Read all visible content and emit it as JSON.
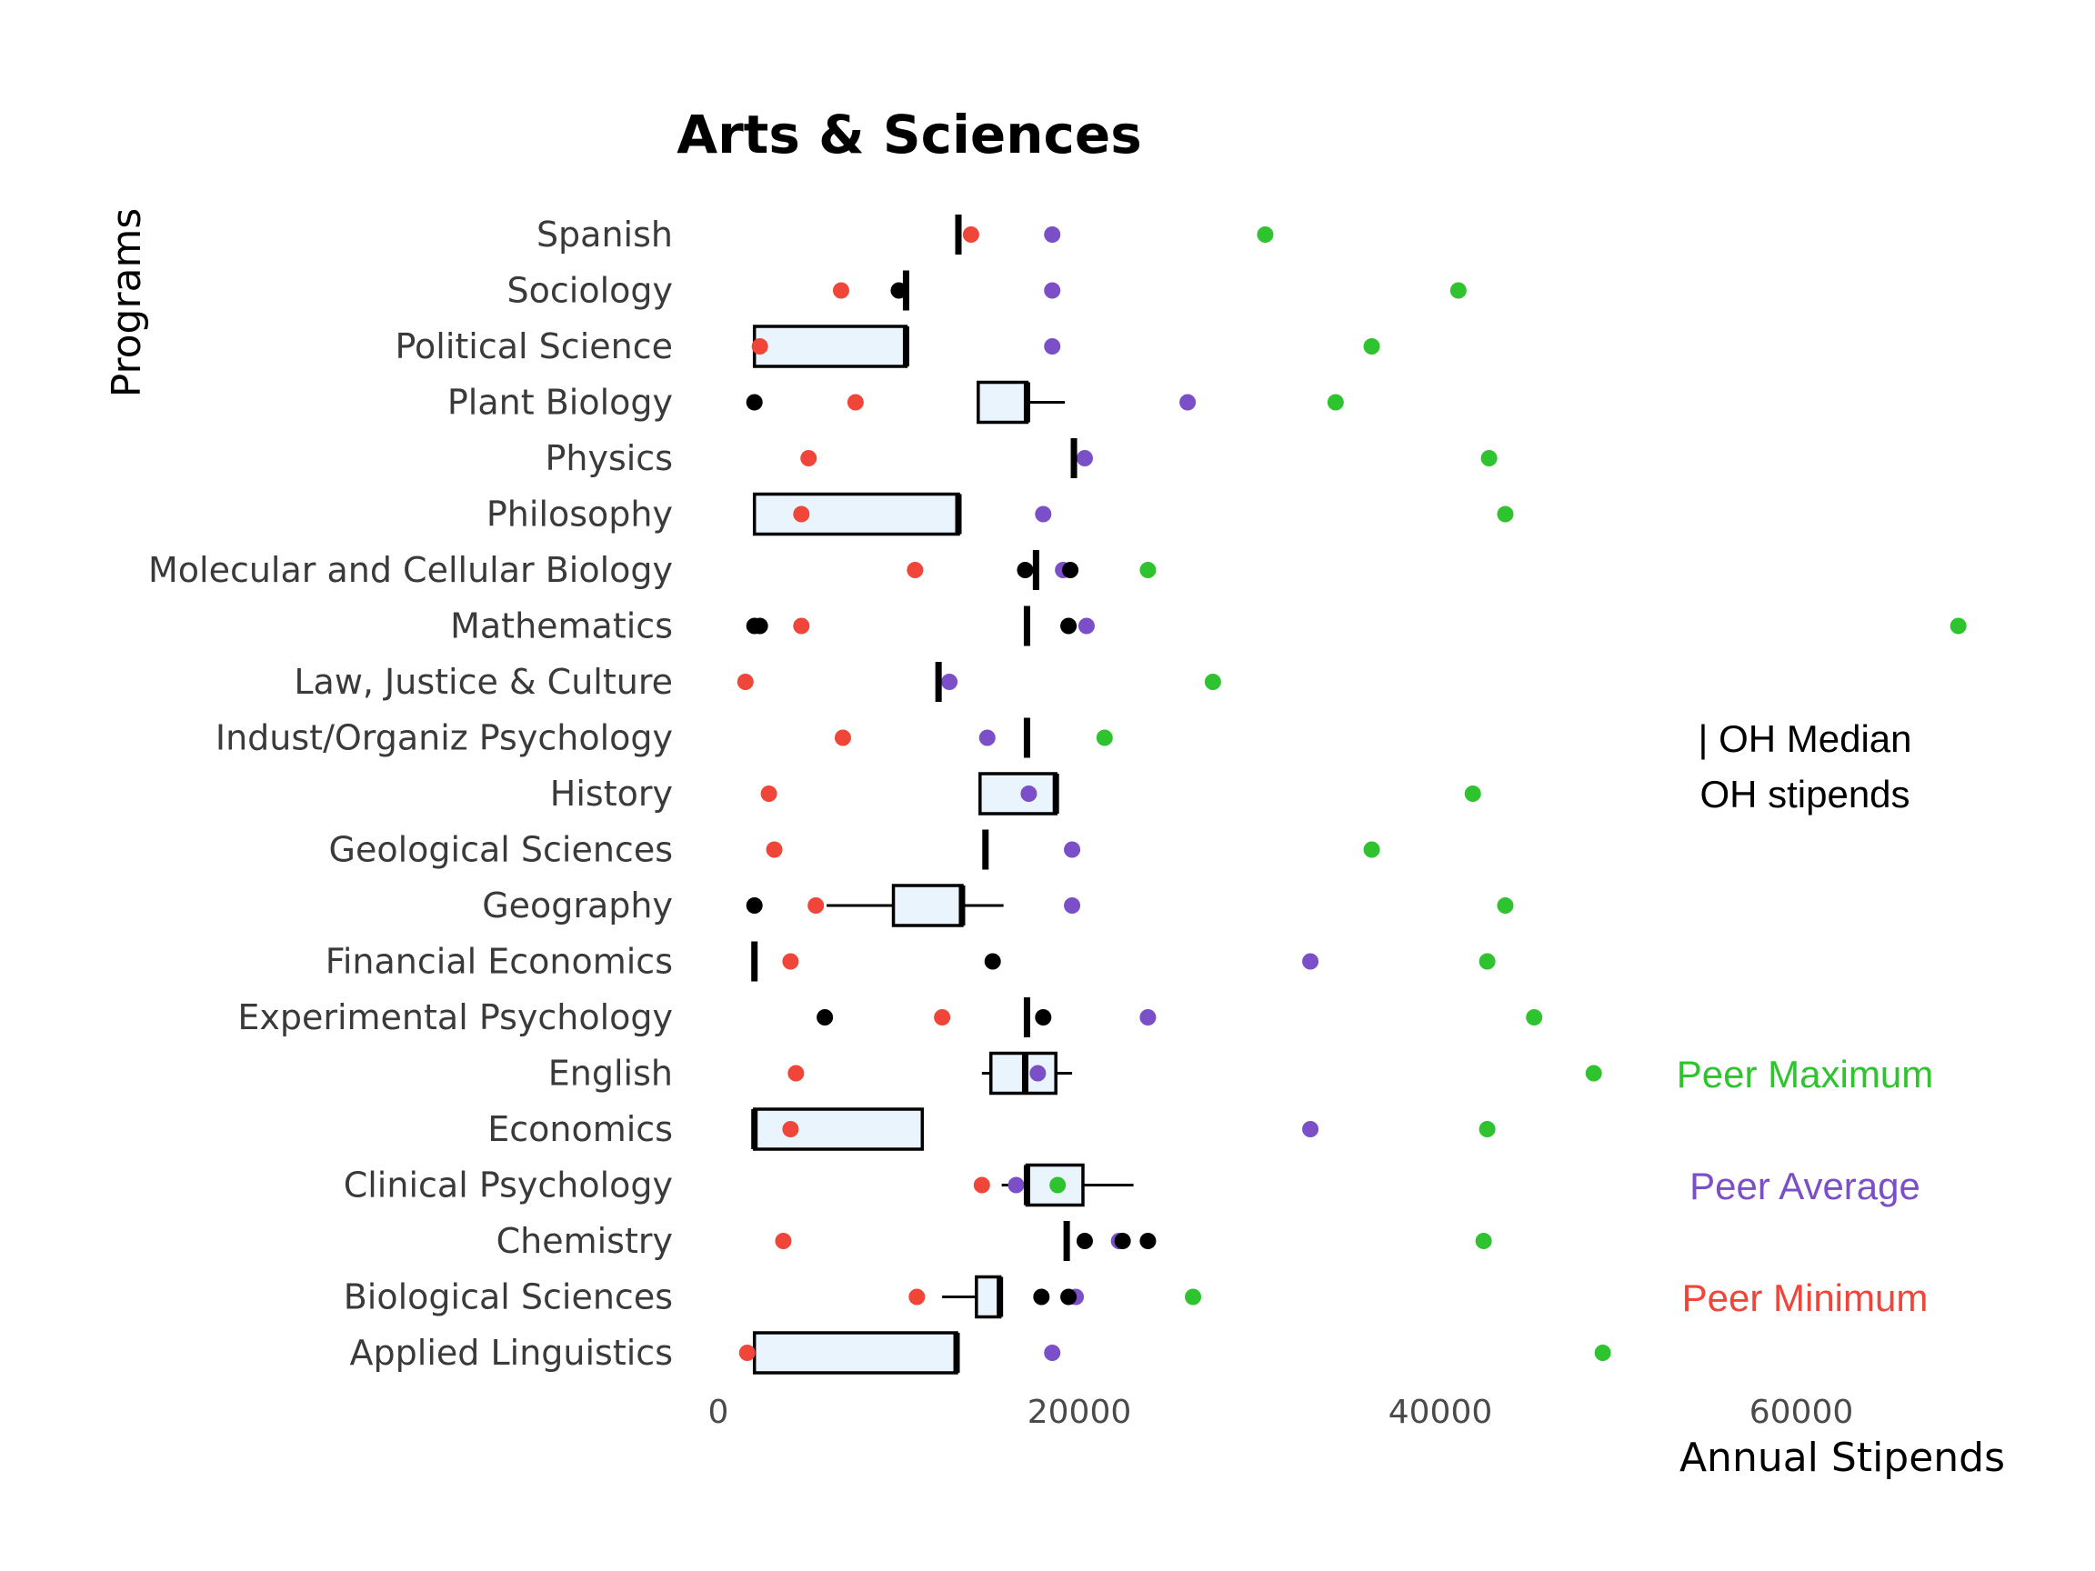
{
  "chart_data": {
    "type": "box",
    "title": "Arts & Sciences",
    "xlabel": "Annual Stipends",
    "ylabel": "Programs",
    "xlim": [
      0,
      72000
    ],
    "xticks": [
      0,
      20000,
      40000,
      60000
    ],
    "xtick_labels": [
      "0",
      "20000",
      "40000",
      "60000"
    ],
    "colors": {
      "box_fill": "#eaf4fd",
      "peer_max": "#2fc42f",
      "peer_avg": "#7a4fc8",
      "peer_min": "#f0463a",
      "oh_stipends": "#000000",
      "median": "#000000"
    },
    "legend": {
      "median_label": "| OH Median",
      "stipends_label": "OH stipends",
      "peer_max_label": "Peer Maximum",
      "peer_avg_label": "Peer Average",
      "peer_min_label": "Peer Minimum"
    },
    "programs": [
      {
        "name": "Spanish",
        "box": null,
        "median": 13300,
        "oh": [],
        "peer_min": 14000,
        "peer_avg": 18500,
        "peer_max": 30300
      },
      {
        "name": "Sociology",
        "box": null,
        "median": 10400,
        "oh": [
          10000
        ],
        "peer_min": 6800,
        "peer_avg": 18500,
        "peer_max": 41000
      },
      {
        "name": "Political Science",
        "box": {
          "q1": 2000,
          "q3": 10400,
          "whisker_low": 2000,
          "whisker_high": 10400
        },
        "median": 10400,
        "oh": [],
        "peer_min": 2300,
        "peer_avg": 18500,
        "peer_max": 36200
      },
      {
        "name": "Plant Biology",
        "box": {
          "q1": 14400,
          "q3": 17100,
          "whisker_low": 14400,
          "whisker_high": 19200
        },
        "median": 17100,
        "oh": [
          2000
        ],
        "peer_min": 7600,
        "peer_avg": 26000,
        "peer_max": 34200
      },
      {
        "name": "Physics",
        "box": null,
        "median": 19700,
        "oh": [],
        "peer_min": 5000,
        "peer_avg": 20300,
        "peer_max": 42700
      },
      {
        "name": "Philosophy",
        "box": {
          "q1": 2000,
          "q3": 13300,
          "whisker_low": 2000,
          "whisker_high": 13300
        },
        "median": 13300,
        "oh": [],
        "peer_min": 4600,
        "peer_avg": 18000,
        "peer_max": 43600
      },
      {
        "name": "Molecular and Cellular Biology",
        "box": null,
        "median": 17600,
        "oh": [
          17000,
          19500
        ],
        "peer_min": 10900,
        "peer_avg": 19100,
        "peer_max": 23800
      },
      {
        "name": "Mathematics",
        "box": null,
        "median": 17100,
        "oh": [
          2000,
          2300,
          19400
        ],
        "peer_min": 4600,
        "peer_avg": 20400,
        "peer_max": 68700
      },
      {
        "name": "Law, Justice & Culture",
        "box": null,
        "median": 12200,
        "oh": [],
        "peer_min": 1500,
        "peer_avg": 12800,
        "peer_max": 27400
      },
      {
        "name": "Indust/Organiz Psychology",
        "box": null,
        "median": 17100,
        "oh": [],
        "peer_min": 6900,
        "peer_avg": 14900,
        "peer_max": 21400
      },
      {
        "name": "History",
        "box": {
          "q1": 14500,
          "q3": 18700,
          "whisker_low": 14500,
          "whisker_high": 18700
        },
        "median": 18700,
        "oh": [],
        "peer_min": 2800,
        "peer_avg": 17200,
        "peer_max": 41800
      },
      {
        "name": "Geological Sciences",
        "box": null,
        "median": 14800,
        "oh": [],
        "peer_min": 3100,
        "peer_avg": 19600,
        "peer_max": 36200
      },
      {
        "name": "Geography",
        "box": {
          "q1": 9700,
          "q3": 13500,
          "whisker_low": 6000,
          "whisker_high": 15800
        },
        "median": 13500,
        "oh": [
          2000
        ],
        "peer_min": 5400,
        "peer_avg": 19600,
        "peer_max": 43600
      },
      {
        "name": "Financial Economics",
        "box": null,
        "median": 2000,
        "oh": [
          15200
        ],
        "peer_min": 4000,
        "peer_avg": 32800,
        "peer_max": 42600
      },
      {
        "name": "Experimental Psychology",
        "box": null,
        "median": 17100,
        "oh": [
          5900,
          18000
        ],
        "peer_min": 12400,
        "peer_avg": 23800,
        "peer_max": 45200
      },
      {
        "name": "English",
        "box": {
          "q1": 15100,
          "q3": 18700,
          "whisker_low": 14600,
          "whisker_high": 19600
        },
        "median": 17000,
        "oh": [],
        "peer_min": 4300,
        "peer_avg": 17700,
        "peer_max": 48500
      },
      {
        "name": "Economics",
        "box": {
          "q1": 2000,
          "q3": 11300,
          "whisker_low": 2000,
          "whisker_high": 11300
        },
        "median": 2000,
        "oh": [],
        "peer_min": 4000,
        "peer_avg": 32800,
        "peer_max": 42600
      },
      {
        "name": "Clinical Psychology",
        "box": {
          "q1": 17100,
          "q3": 20200,
          "whisker_low": 15700,
          "whisker_high": 23000
        },
        "median": 17100,
        "oh": [],
        "peer_min": 14600,
        "peer_avg": 16500,
        "peer_max": 18800
      },
      {
        "name": "Chemistry",
        "box": null,
        "median": 19300,
        "oh": [
          20300,
          22400,
          23800
        ],
        "peer_min": 3600,
        "peer_avg": 22200,
        "peer_max": 42400
      },
      {
        "name": "Biological Sciences",
        "box": {
          "q1": 14300,
          "q3": 15600,
          "whisker_low": 12400,
          "whisker_high": 15600
        },
        "median": 15600,
        "oh": [
          17900,
          19400
        ],
        "peer_min": 11000,
        "peer_avg": 19800,
        "peer_max": 26300
      },
      {
        "name": "Applied Linguistics",
        "box": {
          "q1": 2000,
          "q3": 13200,
          "whisker_low": 2000,
          "whisker_high": 13200
        },
        "median": 13200,
        "oh": [],
        "peer_min": 1600,
        "peer_avg": 18500,
        "peer_max": 49000
      }
    ]
  }
}
